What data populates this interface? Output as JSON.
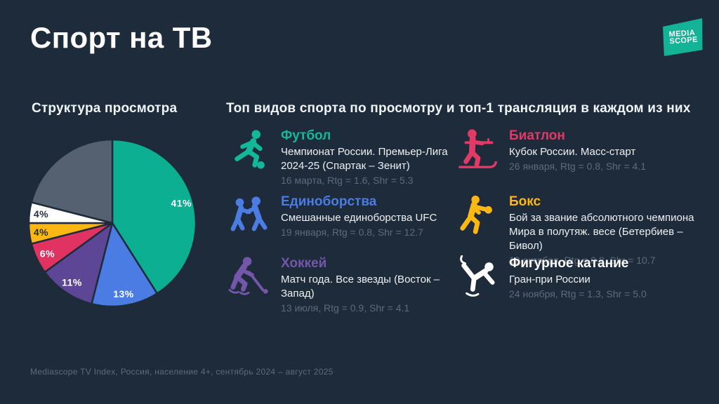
{
  "page": {
    "title": "Спорт на ТВ",
    "footer": "Mediascope TV Index, Россия, население 4+, сентябрь 2024 – август 2025",
    "background_color": "#1d2b3a"
  },
  "logo": {
    "name": "Mediascope",
    "line1": "MEDIA",
    "line2": "SCOPE",
    "color": "#12b396"
  },
  "viewing_structure": {
    "heading": "Структура просмотра"
  },
  "sports": {
    "heading": "Топ видов спорта по просмотру и топ-1 трансляция в каждом из них",
    "items": [
      {
        "name": "Футбол",
        "icon": "footballer-icon",
        "color": "#13b89a",
        "description": "Чемпионат России. Премьер-Лига 2024-25 (Спартак – Зенит)",
        "meta": "16 марта, Rtg = 1.6, Shr = 5.3"
      },
      {
        "name": "Единоборства",
        "icon": "wrestlers-icon",
        "color": "#4b7ce4",
        "description": "Смешанные единоборства UFC",
        "meta": "19 января, Rtg = 0.8, Shr = 12.7"
      },
      {
        "name": "Хоккей",
        "icon": "hockey-player-icon",
        "color": "#7456aa",
        "description": "Матч года. Все звезды (Восток – Запад)",
        "meta": "13 июля, Rtg = 0.9, Shr = 4.1"
      },
      {
        "name": "Биатлон",
        "icon": "biathlete-icon",
        "color": "#e23a66",
        "description": "Кубок России. Масс-старт",
        "meta": "26 января, Rtg = 0.8, Shr = 4.1"
      },
      {
        "name": "Бокс",
        "icon": "boxer-icon",
        "color": "#fcb713",
        "description": "Бой за звание абсолютного чемпиона Мира в полутяж. весе (Бетербиев – Бивол)",
        "meta": "12 октября, Rtg = 0.8, Shr = 10.7"
      },
      {
        "name": "Фигурное катание",
        "icon": "figure-skater-icon",
        "color": "#ffffff",
        "description": "Гран-при России",
        "meta": "24 ноября, Rtg = 1.3, Shr = 5.0"
      }
    ]
  },
  "chart_data": {
    "type": "pie",
    "title": "Структура просмотра",
    "start_angle_deg": 0,
    "direction": "clockwise",
    "legend": "none",
    "segments": [
      {
        "label": "41%",
        "value": 41,
        "color": "#0caf92",
        "label_color": "#ffffff"
      },
      {
        "label": "13%",
        "value": 13,
        "color": "#4b7ce4",
        "label_color": "#ffffff"
      },
      {
        "label": "11%",
        "value": 11,
        "color": "#5d4695",
        "label_color": "#ffffff"
      },
      {
        "label": "6%",
        "value": 6,
        "color": "#e03362",
        "label_color": "#ffffff"
      },
      {
        "label": "4%",
        "value": 4,
        "color": "#fcb713",
        "label_color": "#243140"
      },
      {
        "label": "4%",
        "value": 4,
        "color": "#ffffff",
        "label_color": "#243140"
      },
      {
        "label": "",
        "value": 21,
        "color": "#556170",
        "label_color": "#ffffff"
      }
    ]
  }
}
